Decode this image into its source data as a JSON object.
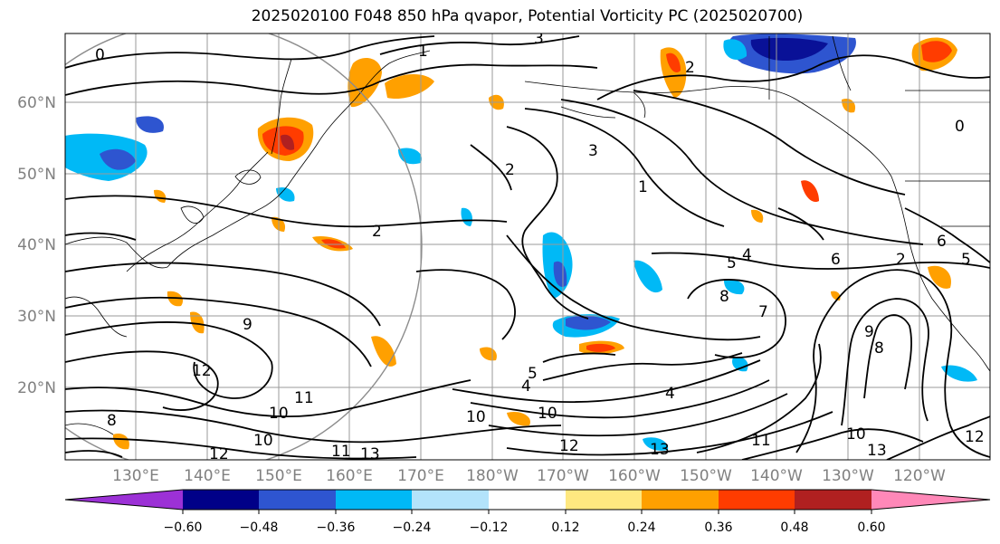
{
  "title": "2025020100 F048 850 hPa qvapor, Potential Vorticity PC (2025020700)",
  "map": {
    "lat_labels": [
      "60°N",
      "50°N",
      "40°N",
      "30°N",
      "20°N"
    ],
    "lon_labels": [
      "130°E",
      "140°E",
      "150°E",
      "160°E",
      "170°E",
      "180°W",
      "170°W",
      "160°W",
      "150°W",
      "140°W",
      "130°W",
      "120°W"
    ],
    "contour_labels": [
      {
        "text": "3"
      },
      {
        "text": "0"
      },
      {
        "text": "2"
      },
      {
        "text": "0"
      },
      {
        "text": "1"
      },
      {
        "text": "2"
      },
      {
        "text": "3"
      },
      {
        "text": "1"
      },
      {
        "text": "2"
      },
      {
        "text": "4"
      },
      {
        "text": "5"
      },
      {
        "text": "6"
      },
      {
        "text": "5"
      },
      {
        "text": "6"
      },
      {
        "text": "2"
      },
      {
        "text": "8"
      },
      {
        "text": "7"
      },
      {
        "text": "9"
      },
      {
        "text": "8"
      },
      {
        "text": "10"
      },
      {
        "text": "11"
      },
      {
        "text": "12"
      },
      {
        "text": "10"
      },
      {
        "text": "11"
      },
      {
        "text": "12"
      },
      {
        "text": "13"
      },
      {
        "text": "12"
      },
      {
        "text": "13"
      },
      {
        "text": "10"
      },
      {
        "text": "9"
      },
      {
        "text": "8"
      },
      {
        "text": "11"
      },
      {
        "text": "10"
      },
      {
        "text": "5"
      },
      {
        "text": "4"
      },
      {
        "text": "12"
      },
      {
        "text": "10"
      },
      {
        "text": "13"
      },
      {
        "text": "4"
      }
    ]
  },
  "colorbar": {
    "colors": [
      "#9c31d6",
      "#000088",
      "#2e55d0",
      "#00b9f6",
      "#b3e3fb",
      "#ffffff",
      "#ffe880",
      "#ffa000",
      "#ff3c00",
      "#b02020",
      "#ff88b8"
    ],
    "ticks": [
      "−0.60",
      "−0.48",
      "−0.36",
      "−0.24",
      "−0.12",
      "0.12",
      "0.24",
      "0.36",
      "0.48",
      "0.60"
    ]
  }
}
